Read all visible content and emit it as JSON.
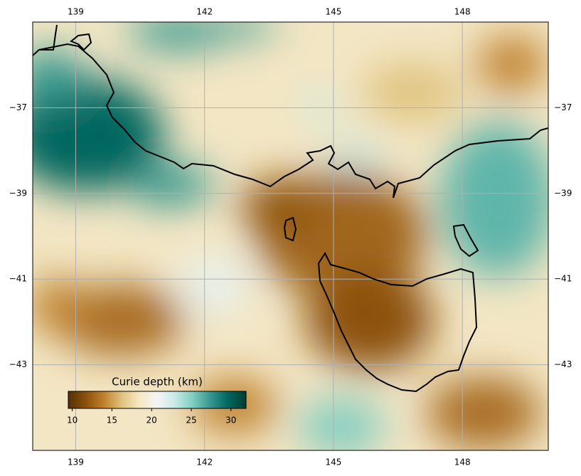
{
  "map": {
    "xlim": [
      138,
      150
    ],
    "ylim": [
      -45,
      -35
    ],
    "xticks": [
      139,
      142,
      145,
      148
    ],
    "yticks": [
      {
        "value": -37,
        "label": "−37"
      },
      {
        "value": -39,
        "label": "−39"
      },
      {
        "value": -41,
        "label": "−41"
      },
      {
        "value": -43,
        "label": "−43"
      }
    ],
    "grid": true,
    "colorbar": {
      "label": "Curie depth (km)",
      "lim": [
        9.5,
        31.9
      ],
      "ticks": [
        10,
        15,
        20,
        25,
        30
      ],
      "colormap": [
        "#543005",
        "#8c510a",
        "#bf812d",
        "#dfc27d",
        "#f6e8c3",
        "#f5f5f5",
        "#c7eae5",
        "#80cdc1",
        "#35978f",
        "#01665e",
        "#003c30"
      ]
    }
  }
}
